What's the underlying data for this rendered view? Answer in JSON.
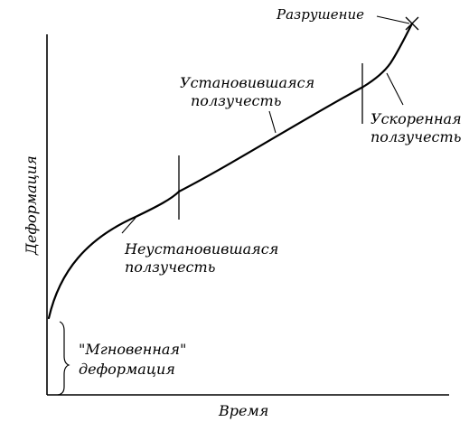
{
  "figure": {
    "x_axis_label": "Время",
    "y_axis_label": "Деформация",
    "stages": {
      "instant": [
        "\"Мгновенная\"",
        "деформация"
      ],
      "unsteady": [
        "Неустановившаяся",
        "ползучесть"
      ],
      "steady": [
        "Установившаяся",
        "ползучесть"
      ],
      "accelerated": [
        "Ускоренная",
        "ползучесть"
      ],
      "failure": "Разрушение"
    }
  },
  "colors": {
    "ink": "#000000",
    "background": "#ffffff"
  }
}
